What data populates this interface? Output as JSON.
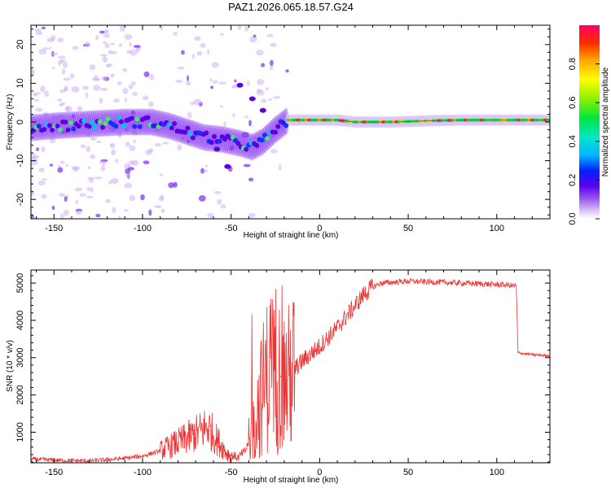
{
  "title": "PAZ1.2026.065.18.57.G24",
  "chart_data": [
    {
      "type": "heatmap",
      "title": "PAZ1.2026.065.18.57.G24",
      "xlabel": "Height of straight line (km)",
      "ylabel": "Frequency (Hz)",
      "xlim": [
        -163,
        130
      ],
      "ylim": [
        -25,
        25
      ],
      "xticks": [
        -150,
        -100,
        -50,
        0,
        50,
        100
      ],
      "yticks": [
        -20,
        -10,
        0,
        10,
        20
      ],
      "colorbar": {
        "label": "Normalized spectral amplitude",
        "range": [
          0,
          1
        ],
        "ticks": [
          "0.0",
          "0.2",
          "0.4",
          "0.6",
          "0.8"
        ]
      },
      "ridge_frequency_hz": [
        {
          "x": -163,
          "y": -1.5
        },
        {
          "x": -150,
          "y": -1.0
        },
        {
          "x": -130,
          "y": -0.5
        },
        {
          "x": -110,
          "y": 0.0
        },
        {
          "x": -95,
          "y": 0.0
        },
        {
          "x": -85,
          "y": -1.0
        },
        {
          "x": -75,
          "y": -2.5
        },
        {
          "x": -65,
          "y": -4.0
        },
        {
          "x": -55,
          "y": -4.5
        },
        {
          "x": -45,
          "y": -5.5
        },
        {
          "x": -38,
          "y": -6.5
        },
        {
          "x": -32,
          "y": -5.0
        },
        {
          "x": -25,
          "y": -2.0
        },
        {
          "x": -18,
          "y": 0.5
        },
        {
          "x": -10,
          "y": 0.5
        },
        {
          "x": 0,
          "y": 0.5
        },
        {
          "x": 10,
          "y": 0.5
        },
        {
          "x": 20,
          "y": 0.0
        },
        {
          "x": 40,
          "y": 0.0
        },
        {
          "x": 60,
          "y": 0.3
        },
        {
          "x": 80,
          "y": 0.5
        },
        {
          "x": 100,
          "y": 0.5
        },
        {
          "x": 130,
          "y": 0.5
        }
      ],
      "secondary_branch_hz": [
        {
          "x": -58,
          "y": -7.0
        },
        {
          "x": -52,
          "y": -11.5
        },
        {
          "x": -45,
          "y": 9.5
        },
        {
          "x": -38,
          "y": 6.0
        },
        {
          "x": -32,
          "y": 3.0
        }
      ]
    },
    {
      "type": "line",
      "xlabel": "Height of straight line (km)",
      "ylabel": "SNR (10 * v/v)",
      "xlim": [
        -163,
        130
      ],
      "ylim": [
        180,
        5350
      ],
      "xticks": [
        -150,
        -100,
        -50,
        0,
        50,
        100
      ],
      "yticks": [
        1000,
        2000,
        3000,
        4000,
        5000
      ],
      "series": [
        {
          "name": "SNR",
          "color": "#ee3333",
          "points": [
            {
              "x": -163,
              "y": 280
            },
            {
              "x": -150,
              "y": 250
            },
            {
              "x": -130,
              "y": 230
            },
            {
              "x": -110,
              "y": 300
            },
            {
              "x": -100,
              "y": 360
            },
            {
              "x": -90,
              "y": 500
            },
            {
              "x": -80,
              "y": 720
            },
            {
              "x": -70,
              "y": 950
            },
            {
              "x": -63,
              "y": 1150
            },
            {
              "x": -58,
              "y": 800
            },
            {
              "x": -52,
              "y": 420
            },
            {
              "x": -46,
              "y": 320
            },
            {
              "x": -42,
              "y": 500
            },
            {
              "x": -38,
              "y": 1000
            },
            {
              "x": -34,
              "y": 1800
            },
            {
              "x": -30,
              "y": 2500
            },
            {
              "x": -26,
              "y": 2700
            },
            {
              "x": -22,
              "y": 2500
            },
            {
              "x": -18,
              "y": 2400
            },
            {
              "x": -14,
              "y": 2700
            },
            {
              "x": -10,
              "y": 2900
            },
            {
              "x": -5,
              "y": 3100
            },
            {
              "x": 0,
              "y": 3300
            },
            {
              "x": 5,
              "y": 3550
            },
            {
              "x": 10,
              "y": 3800
            },
            {
              "x": 15,
              "y": 4100
            },
            {
              "x": 20,
              "y": 4400
            },
            {
              "x": 25,
              "y": 4700
            },
            {
              "x": 30,
              "y": 4900
            },
            {
              "x": 35,
              "y": 5000
            },
            {
              "x": 50,
              "y": 5050
            },
            {
              "x": 70,
              "y": 5020
            },
            {
              "x": 90,
              "y": 4980
            },
            {
              "x": 105,
              "y": 4950
            },
            {
              "x": 111,
              "y": 4920
            },
            {
              "x": 112,
              "y": 3130
            },
            {
              "x": 120,
              "y": 3080
            },
            {
              "x": 130,
              "y": 3050
            }
          ]
        }
      ]
    }
  ]
}
